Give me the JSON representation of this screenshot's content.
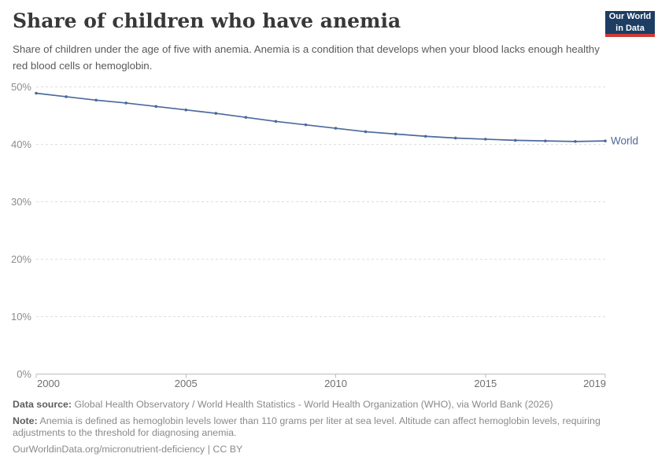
{
  "header": {
    "title": "Share of children who have anemia",
    "subtitle": "Share of children under the age of five with anemia. Anemia is a condition that develops when your blood lacks enough healthy red blood cells or hemoglobin.",
    "logo": {
      "line1": "Our World",
      "line2": "in Data"
    }
  },
  "chart_data": {
    "type": "line",
    "title": "Share of children who have anemia",
    "x": [
      2000,
      2001,
      2002,
      2003,
      2004,
      2005,
      2006,
      2007,
      2008,
      2009,
      2010,
      2011,
      2012,
      2013,
      2014,
      2015,
      2016,
      2017,
      2018,
      2019
    ],
    "series": [
      {
        "name": "World",
        "color": "#4C6A9C",
        "values": [
          48.9,
          48.3,
          47.7,
          47.2,
          46.6,
          46.0,
          45.4,
          44.7,
          44.0,
          43.4,
          42.8,
          42.2,
          41.8,
          41.4,
          41.1,
          40.9,
          40.7,
          40.6,
          40.5,
          40.6
        ]
      }
    ],
    "xlabel": "",
    "ylabel": "",
    "xlim": [
      2000,
      2019
    ],
    "ylim": [
      0,
      50
    ],
    "x_ticks": [
      2000,
      2005,
      2010,
      2015,
      2019
    ],
    "y_ticks": [
      {
        "value": 0,
        "label": "0%"
      },
      {
        "value": 10,
        "label": "10%"
      },
      {
        "value": 20,
        "label": "20%"
      },
      {
        "value": 30,
        "label": "30%"
      },
      {
        "value": 40,
        "label": "40%"
      },
      {
        "value": 50,
        "label": "50%"
      }
    ],
    "grid": "horizontal-dashed",
    "legend": "series-end-label",
    "unit": "%"
  },
  "footer": {
    "datasource_label": "Data source:",
    "datasource": "Global Health Observatory / World Health Statistics - World Health Organization (WHO), via World Bank (2026)",
    "note_label": "Note:",
    "note": "Anemia is defined as hemoglobin levels lower than 110 grams per liter at sea level. Altitude can affect hemoglobin levels, requiring adjustments to the threshold for diagnosing anemia.",
    "url": "OurWorldinData.org/micronutrient-deficiency",
    "divider": "|",
    "license": "CC BY"
  },
  "colors": {
    "line": "#4C6A9C",
    "gridline": "#dedede",
    "axis": "#bdbdbd",
    "y_tick_label": "#8c8c8c",
    "x_tick_label": "#6f6f6f",
    "title": "#383838",
    "subtitle": "#595959",
    "footer": "#8a8a8a",
    "logo_bg": "#1d3d63",
    "logo_stripe": "#cc3b33"
  }
}
